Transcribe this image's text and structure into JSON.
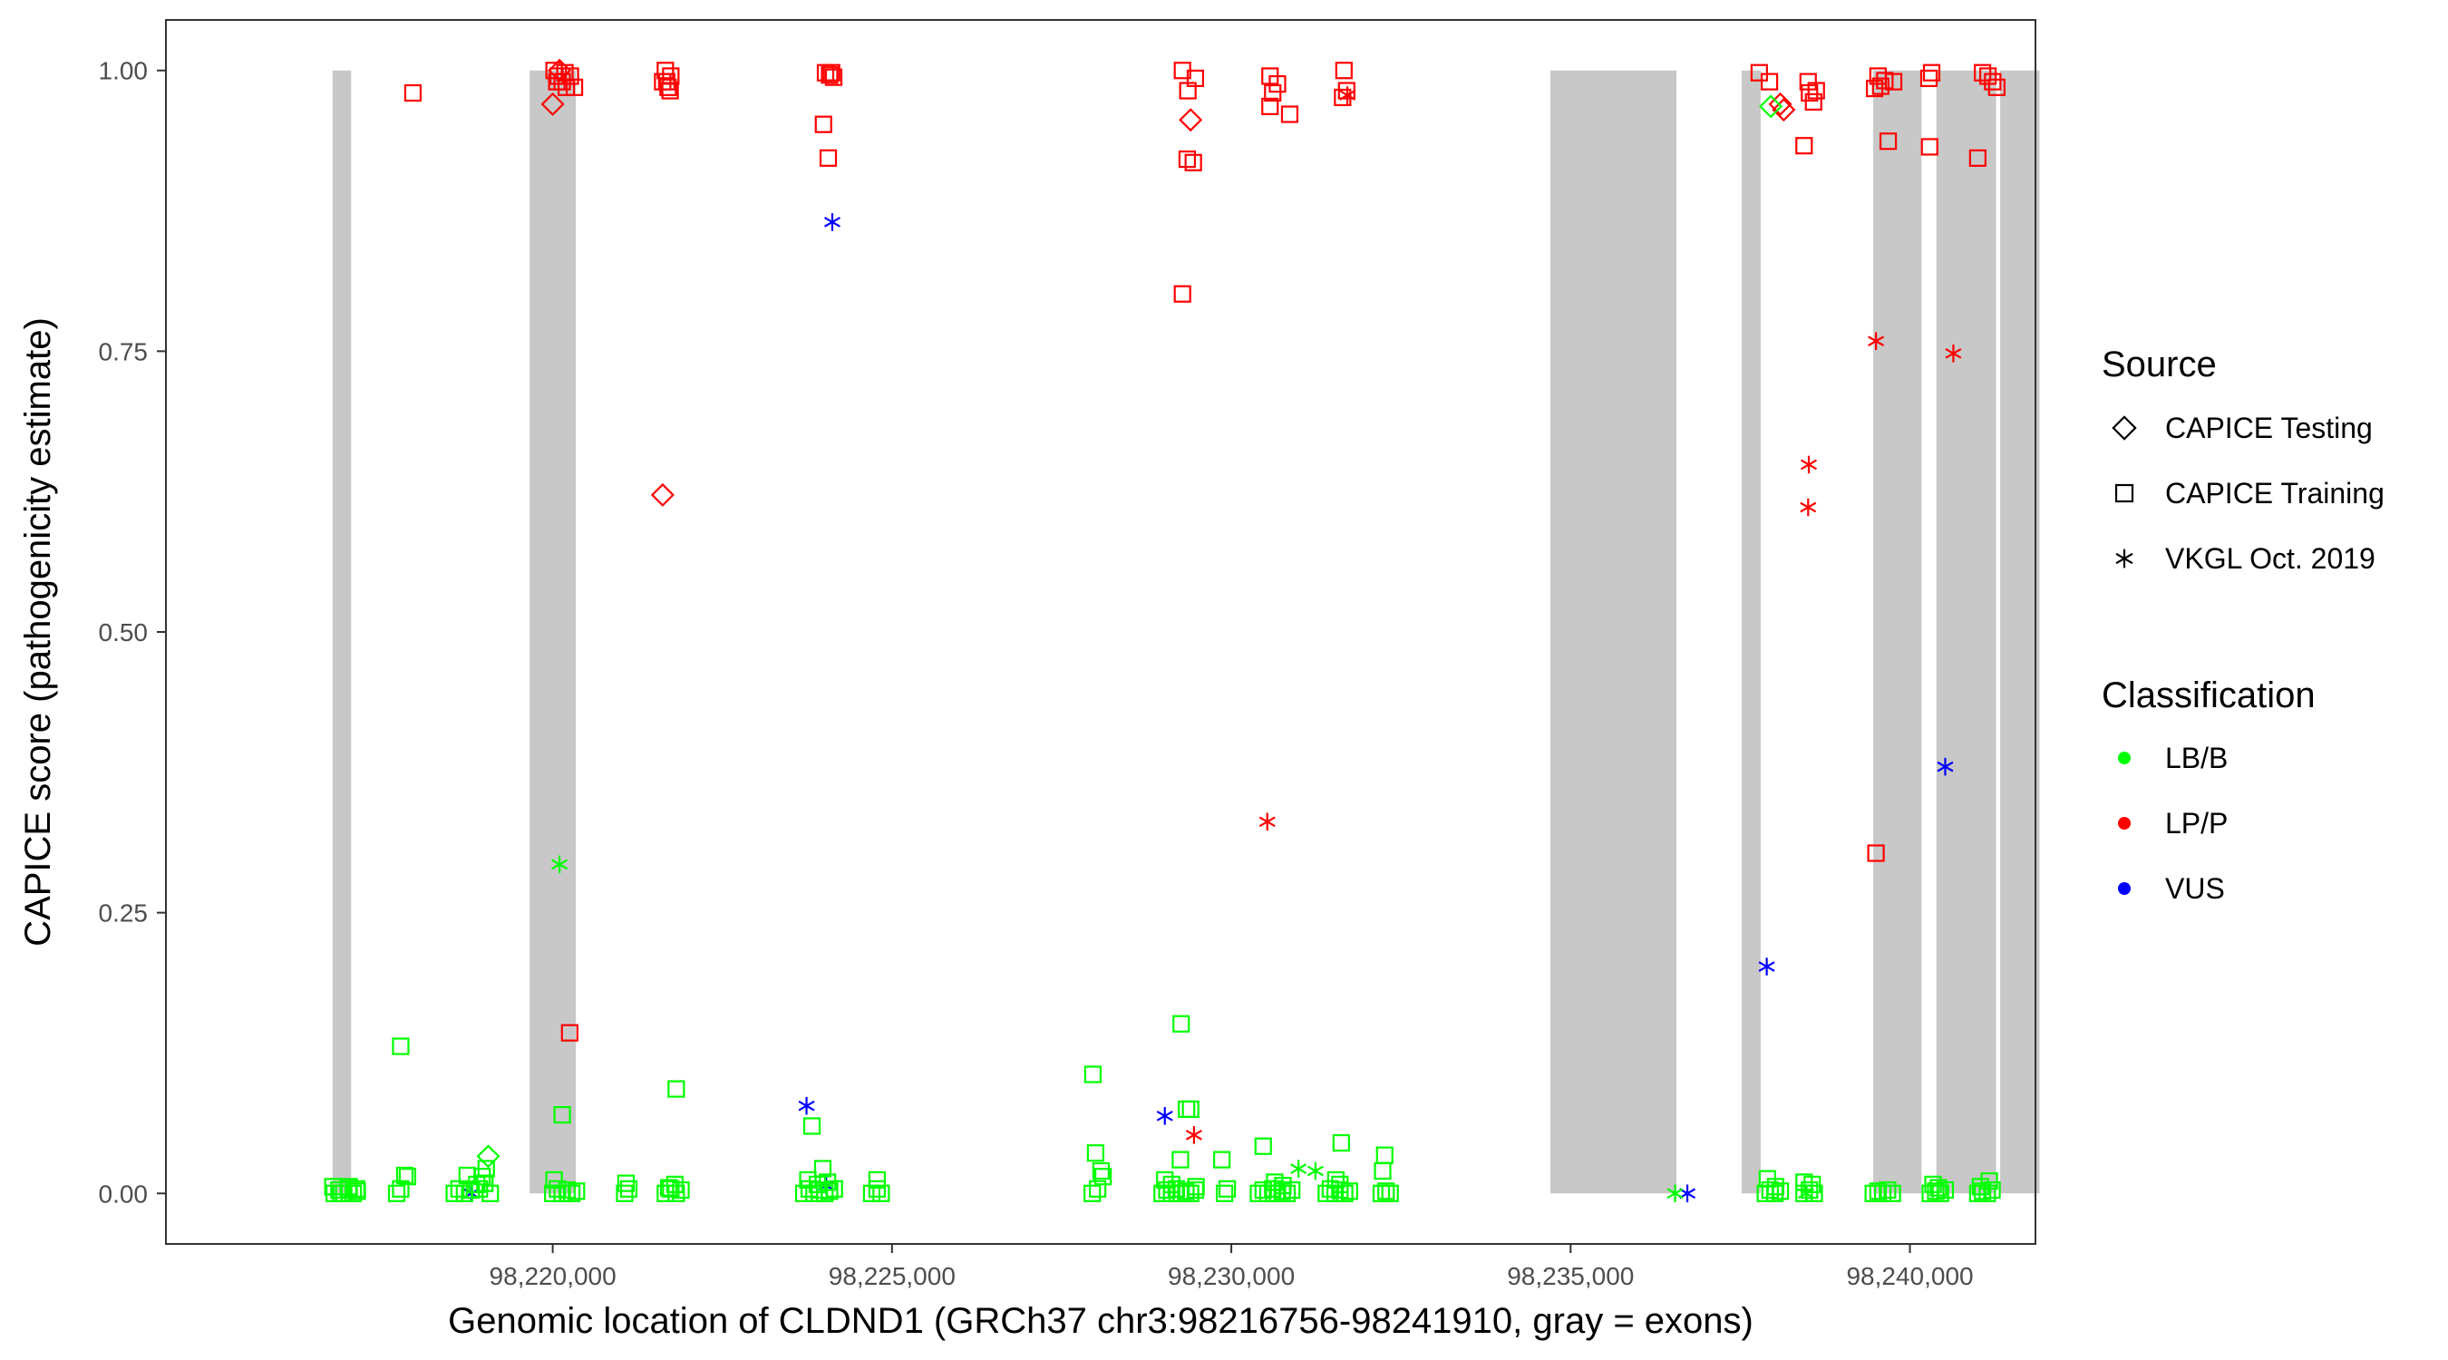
{
  "chart_data": {
    "type": "scatter",
    "xlabel": "Genomic location of CLDND1 (GRCh37 chr3:98216756-98241910, gray = exons)",
    "ylabel": "CAPICE score (pathogenicity estimate)",
    "xlim": [
      98214300,
      98241850
    ],
    "ylim": [
      -0.045,
      1.045
    ],
    "x_ticks": [
      98220000,
      98225000,
      98230000,
      98235000,
      98240000
    ],
    "x_tick_labels": [
      "98,220,000",
      "98,225,000",
      "98,230,000",
      "98,235,000",
      "98,240,000"
    ],
    "y_ticks": [
      0,
      0.25,
      0.5,
      0.75,
      1
    ],
    "y_tick_labels": [
      "0.00",
      "0.25",
      "0.50",
      "0.75",
      "1.00"
    ],
    "grid": false,
    "exon_color": "#c8c8c8",
    "exons": [
      [
        98216756,
        98217030
      ],
      [
        98219660,
        98220340
      ],
      [
        98234700,
        98236560
      ],
      [
        98237520,
        98237800
      ],
      [
        98239460,
        98240170
      ],
      [
        98240390,
        98241270
      ],
      [
        98241330,
        98241910
      ]
    ],
    "legend": {
      "position": "right",
      "source_title": "Source",
      "source_entries": [
        {
          "label": "CAPICE Testing",
          "shape": "diamond"
        },
        {
          "label": "CAPICE Training",
          "shape": "square"
        },
        {
          "label": "VKGL Oct. 2019",
          "shape": "asterisk"
        }
      ],
      "class_title": "Classification",
      "class_entries": [
        {
          "label": "LB/B",
          "color": "#00ff00"
        },
        {
          "label": "LP/P",
          "color": "#ff0000"
        },
        {
          "label": "VUS",
          "color": "#0000ff"
        }
      ]
    },
    "colors": {
      "LB/B": "#00ff00",
      "LP/P": "#ff0000",
      "VUS": "#0000ff"
    },
    "series": [
      {
        "source": "CAPICE Training",
        "classification": "LP/P",
        "x": [
          98217940,
          98220020,
          98220080,
          98220140,
          98220200,
          98220260,
          98220320,
          98220060,
          98220180,
          98221620,
          98221660,
          98221700,
          98221740,
          98221680,
          98224020,
          98224080,
          98224140,
          98224110,
          98223990,
          98224060,
          98221730,
          98220250,
          98229280,
          98229360,
          98229470,
          98229350,
          98229440,
          98229280,
          98230570,
          98230680,
          98230610,
          98230570,
          98230860,
          98231660,
          98231700,
          98231640,
          98237780,
          98237930,
          98238500,
          98238620,
          98238580,
          98238520,
          98238440,
          98239530,
          98239630,
          98239760,
          98239570,
          98239680,
          98239500,
          98240320,
          98240280,
          98240290,
          98241070,
          98241150,
          98241220,
          98241280,
          98241000,
          98239480
        ],
        "y": [
          0.98,
          1.0,
          0.995,
          0.99,
          0.985,
          0.995,
          0.985,
          0.99,
          0.998,
          0.99,
          1.0,
          0.985,
          0.995,
          0.99,
          0.998,
          0.996,
          0.994,
          0.998,
          0.952,
          0.922,
          0.982,
          0.143,
          1.0,
          0.982,
          0.993,
          0.921,
          0.918,
          0.801,
          0.995,
          0.988,
          0.98,
          0.968,
          0.961,
          1.0,
          0.982,
          0.976,
          0.998,
          0.99,
          0.99,
          0.982,
          0.972,
          0.98,
          0.933,
          0.995,
          0.991,
          0.99,
          0.986,
          0.937,
          0.303,
          0.998,
          0.993,
          0.932,
          0.998,
          0.995,
          0.99,
          0.985,
          0.922,
          0.984
        ]
      },
      {
        "source": "CAPICE Testing",
        "classification": "LP/P",
        "x": [
          98220000,
          98220100,
          98221620,
          98229400,
          98238140,
          98238090
        ],
        "y": [
          0.97,
          1.0,
          0.622,
          0.956,
          0.965,
          0.97
        ]
      },
      {
        "source": "VKGL Oct. 2019",
        "classification": "LP/P",
        "x": [
          98231710,
          98230530,
          98229450,
          98239500,
          98240640,
          98238510,
          98238500
        ],
        "y": [
          0.978,
          0.331,
          0.052,
          0.759,
          0.748,
          0.649,
          0.611
        ]
      },
      {
        "source": "VKGL Oct. 2019",
        "classification": "VUS",
        "x": [
          98224120,
          98223740,
          98229020,
          98218800,
          98224030,
          98236720,
          98237890,
          98240520
        ],
        "y": [
          0.865,
          0.078,
          0.069,
          0.0,
          0.007,
          0.0,
          0.202,
          0.38
        ]
      },
      {
        "source": "VKGL Oct. 2019",
        "classification": "LB/B",
        "x": [
          98220100,
          98236540,
          98230990,
          98231240,
          98238470
        ],
        "y": [
          0.293,
          0.0,
          0.022,
          0.02,
          0.0
        ]
      },
      {
        "source": "CAPICE Testing",
        "classification": "LB/B",
        "x": [
          98219050,
          98237950
        ],
        "y": [
          0.033,
          0.968
        ]
      },
      {
        "source": "CAPICE Training",
        "classification": "LB/B",
        "x": [
          98216780,
          98216850,
          98216920,
          98216990,
          98217060,
          98217120,
          98216760,
          98216880,
          98217000,
          98217110,
          98217700,
          98217760,
          98217820,
          98217860,
          98217760,
          98218550,
          98218620,
          98218700,
          98218800,
          98218880,
          98218960,
          98219020,
          98219080,
          98218740,
          98218920,
          98219000,
          98220000,
          98220070,
          98220140,
          98220210,
          98220280,
          98220350,
          98220020,
          98220140,
          98221060,
          98221120,
          98221080,
          98221660,
          98221740,
          98221820,
          98221890,
          98221710,
          98221800,
          98221820,
          98223700,
          98223780,
          98223850,
          98223930,
          98224010,
          98224080,
          98224150,
          98223760,
          98223900,
          98224050,
          98223820,
          98223980,
          98224700,
          98224780,
          98224840,
          98224780,
          98227950,
          98228030,
          98228110,
          98228080,
          98228000,
          98227960,
          98228980,
          98229050,
          98229120,
          98229190,
          98229260,
          98229330,
          98229400,
          98229470,
          98229020,
          98229120,
          98229250,
          98229340,
          98229400,
          98229480,
          98229260,
          98229900,
          98229940,
          98229860,
          98230400,
          98230470,
          98230540,
          98230610,
          98230680,
          98230750,
          98230820,
          98230890,
          98230640,
          98230760,
          98230470,
          98231400,
          98231460,
          98231530,
          98231600,
          98231670,
          98231740,
          98231540,
          98231600,
          98231620,
          98232210,
          98232280,
          98232340,
          98232230,
          98232260,
          98237870,
          98237940,
          98238010,
          98238090,
          98237900,
          98238020,
          98238440,
          98238520,
          98238590,
          98238440,
          98238560,
          98239460,
          98239530,
          98239600,
          98239670,
          98239740,
          98240300,
          98240380,
          98240450,
          98240520,
          98240340,
          98240420,
          98241000,
          98241070,
          98241140,
          98241210,
          98241040,
          98241170
        ],
        "y": [
          0.0,
          0.003,
          0.0,
          0.004,
          0.0,
          0.002,
          0.006,
          0.0,
          0.006,
          0.004,
          0.0,
          0.004,
          0.016,
          0.015,
          0.131,
          0.0,
          0.004,
          0.0,
          0.003,
          0.008,
          0.015,
          0.022,
          0.0,
          0.016,
          0.004,
          0.009,
          0.0,
          0.004,
          0.0,
          0.003,
          0.0,
          0.002,
          0.012,
          0.07,
          0.0,
          0.004,
          0.009,
          0.0,
          0.004,
          0.0,
          0.003,
          0.005,
          0.008,
          0.093,
          0.0,
          0.004,
          0.0,
          0.003,
          0.0,
          0.002,
          0.004,
          0.012,
          0.008,
          0.01,
          0.06,
          0.022,
          0.0,
          0.004,
          0.0,
          0.012,
          0.0,
          0.004,
          0.015,
          0.02,
          0.036,
          0.106,
          0.0,
          0.003,
          0.0,
          0.004,
          0.0,
          0.002,
          0.0,
          0.003,
          0.012,
          0.008,
          0.03,
          0.075,
          0.075,
          0.006,
          0.151,
          0.0,
          0.004,
          0.03,
          0.0,
          0.003,
          0.0,
          0.004,
          0.0,
          0.002,
          0.0,
          0.003,
          0.01,
          0.007,
          0.042,
          0.0,
          0.004,
          0.0,
          0.003,
          0.0,
          0.002,
          0.012,
          0.008,
          0.045,
          0.0,
          0.002,
          0.0,
          0.02,
          0.034,
          0.0,
          0.003,
          0.0,
          0.002,
          0.013,
          0.006,
          0.0,
          0.003,
          0.0,
          0.01,
          0.008,
          0.0,
          0.002,
          0.0,
          0.003,
          0.0,
          0.0,
          0.002,
          0.0,
          0.003,
          0.008,
          0.005,
          0.0,
          0.002,
          0.0,
          0.003,
          0.006,
          0.011
        ]
      }
    ]
  }
}
